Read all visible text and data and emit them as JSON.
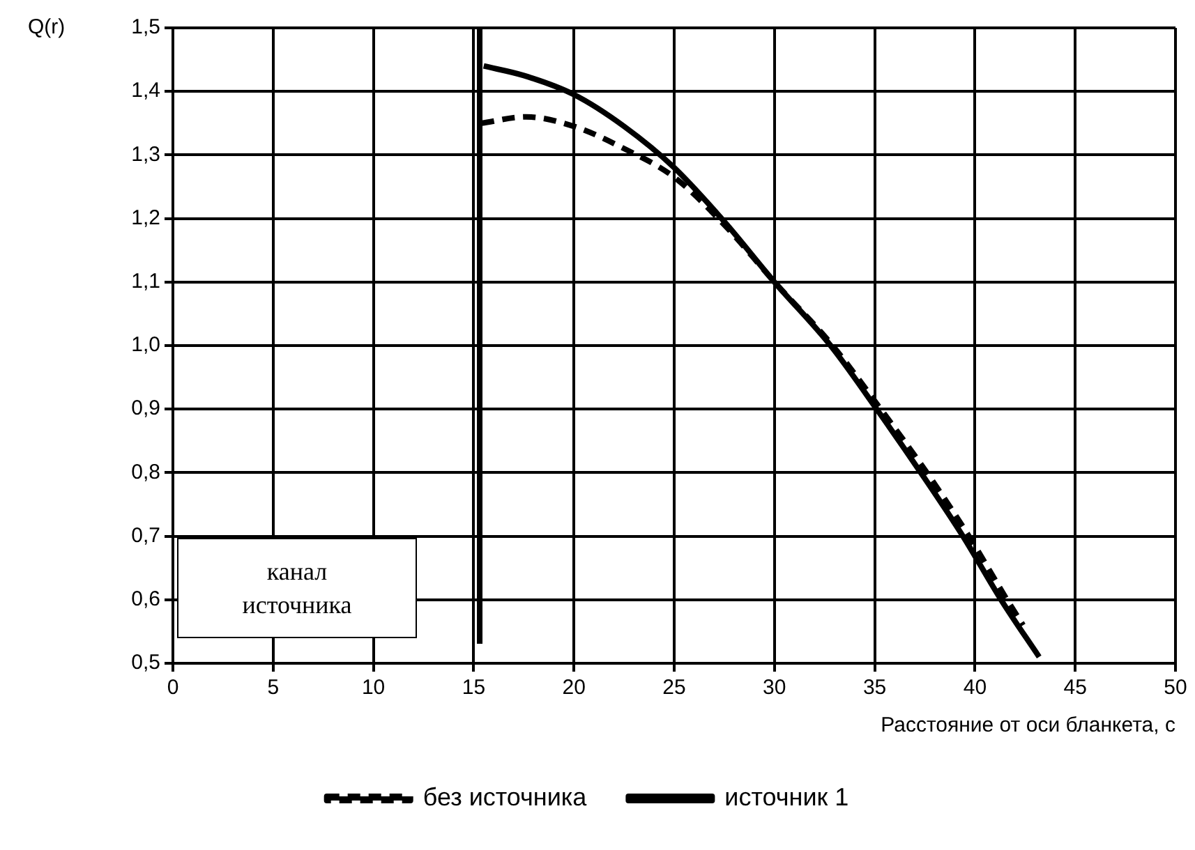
{
  "chart_data": {
    "type": "line",
    "xlabel": "Расстояние от оси бланкета, с",
    "ylabel": "Q(r)",
    "xlim": [
      0,
      50
    ],
    "xticks": [
      0,
      5,
      10,
      15,
      20,
      25,
      30,
      35,
      40,
      45,
      50
    ],
    "ylim": [
      0.5,
      1.5
    ],
    "yticks": [
      {
        "value": 0.5,
        "label": "0,5"
      },
      {
        "value": 0.6,
        "label": "0,6"
      },
      {
        "value": 0.7,
        "label": "0,7"
      },
      {
        "value": 0.8,
        "label": "0,8"
      },
      {
        "value": 0.9,
        "label": "0,9"
      },
      {
        "value": 1.0,
        "label": "1,0"
      },
      {
        "value": 1.1,
        "label": "1,1"
      },
      {
        "value": 1.2,
        "label": "1,2"
      },
      {
        "value": 1.3,
        "label": "1,3"
      },
      {
        "value": 1.4,
        "label": "1,4"
      },
      {
        "value": 1.5,
        "label": "1,5"
      }
    ],
    "grid": true,
    "legend": "bottom",
    "marker": "none",
    "series": [
      {
        "name": "без источника",
        "color": "#000000",
        "line_style": "dashed",
        "x": [
          15.4,
          17.6,
          20,
          22.5,
          25,
          27.5,
          30,
          32.9,
          35.3,
          37.6,
          39.7,
          41.6,
          42.4
        ],
        "values": [
          1.35,
          1.36,
          1.345,
          1.31,
          1.265,
          1.19,
          1.1,
          1.0,
          0.9,
          0.8,
          0.7,
          0.6,
          0.56
        ]
      },
      {
        "name": "источник 1",
        "color": "#000000",
        "line_style": "solid",
        "x": [
          15.5,
          17.5,
          20,
          22.5,
          25,
          27.5,
          30,
          32.8,
          35.1,
          37.3,
          39.4,
          41.3,
          43.2
        ],
        "values": [
          1.44,
          1.425,
          1.395,
          1.345,
          1.28,
          1.195,
          1.1,
          1.0,
          0.9,
          0.8,
          0.7,
          0.6,
          0.51
        ]
      }
    ],
    "ref_lines": [
      {
        "axis": "x",
        "value": 15.3,
        "color": "#000000"
      }
    ],
    "annotations": [
      "канал\nисточника"
    ]
  }
}
